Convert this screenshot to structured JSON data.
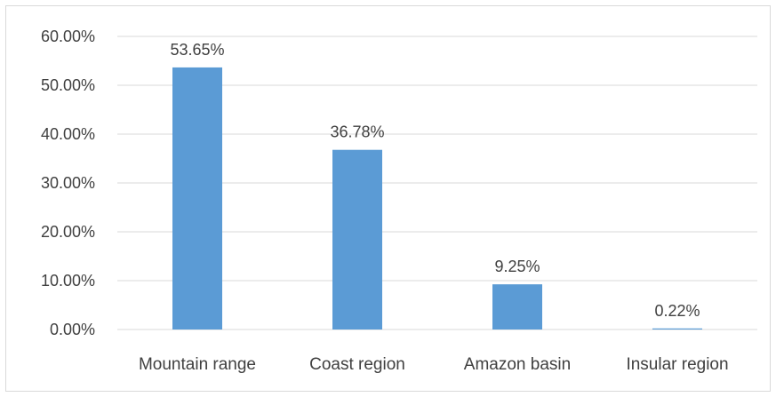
{
  "chart_data": {
    "type": "bar",
    "categories": [
      "Mountain range",
      "Coast region",
      "Amazon basin",
      "Insular region"
    ],
    "values": [
      53.65,
      36.78,
      9.25,
      0.22
    ],
    "data_labels": [
      "53.65%",
      "36.78%",
      "9.25%",
      "0.22%"
    ],
    "y_ticks": [
      0,
      10,
      20,
      30,
      40,
      50,
      60
    ],
    "y_tick_labels": [
      "0.00%",
      "10.00%",
      "20.00%",
      "30.00%",
      "40.00%",
      "50.00%",
      "60.00%"
    ],
    "ylim": [
      0,
      60
    ],
    "grid": true,
    "legend": "none",
    "bar_color": "#5b9bd5",
    "grid_color": "#d9d9d9"
  }
}
